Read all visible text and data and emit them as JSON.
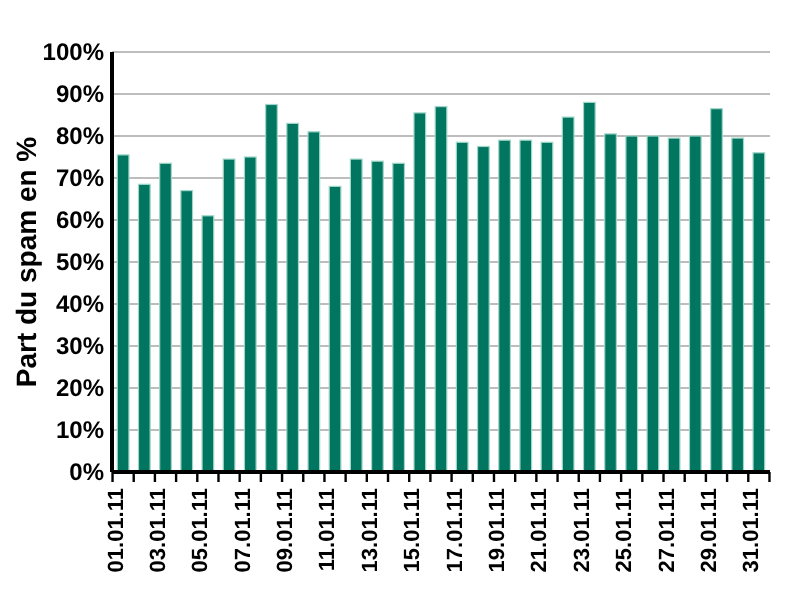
{
  "chart_data": {
    "type": "bar",
    "ylabel": "Part du spam en %",
    "categories": [
      "01.01.11",
      null,
      "03.01.11",
      null,
      "05.01.11",
      null,
      "07.01.11",
      null,
      "09.01.11",
      null,
      "11.01.11",
      null,
      "13.01.11",
      null,
      "15.01.11",
      null,
      "17.01.11",
      null,
      "19.01.11",
      null,
      "21.01.11",
      null,
      "23.01.11",
      null,
      "25.01.11",
      null,
      "27.01.11",
      null,
      "29.01.11",
      null,
      "31.01.11"
    ],
    "values": [
      75.5,
      68.5,
      73.5,
      67,
      61,
      74.5,
      75,
      87.5,
      83,
      81,
      68,
      74.5,
      74,
      73.5,
      85.5,
      87,
      78.5,
      77.5,
      79,
      79,
      78.5,
      84.5,
      88,
      80.5,
      80,
      80,
      79.5,
      80,
      86.5,
      79.5,
      76
    ],
    "color": "#007560",
    "ylim": [
      0,
      100
    ],
    "yticks": [
      {
        "value": 0,
        "label": "0%"
      },
      {
        "value": 10,
        "label": "10%"
      },
      {
        "value": 20,
        "label": "20%"
      },
      {
        "value": 30,
        "label": "30%"
      },
      {
        "value": 40,
        "label": "40%"
      },
      {
        "value": 50,
        "label": "50%"
      },
      {
        "value": 60,
        "label": "60%"
      },
      {
        "value": 70,
        "label": "70%"
      },
      {
        "value": 80,
        "label": "80%"
      },
      {
        "value": 90,
        "label": "90%"
      },
      {
        "value": 100,
        "label": "100%"
      }
    ],
    "grid": "y"
  }
}
